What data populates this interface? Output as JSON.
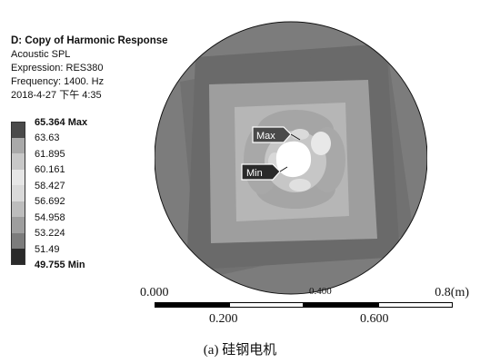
{
  "info": {
    "title": "D: Copy of Harmonic Response",
    "type": "Acoustic SPL",
    "expression": "Expression: RES380",
    "frequency": "Frequency: 1400. Hz",
    "datetime": "2018-4-27 下午 4:35"
  },
  "legend": {
    "max_label": "65.364 Max",
    "values": [
      "63.63",
      "61.895",
      "60.161",
      "58.427",
      "56.692",
      "54.958",
      "53.224",
      "51.49"
    ],
    "min_label": "49.755 Min",
    "colors": [
      "#4a4a4a",
      "#a9a9a9",
      "#c8c8c8",
      "#e6e6e6",
      "#d9d9d9",
      "#bdbdbd",
      "#9e9e9e",
      "#7c7c7c",
      "#2a2a2a"
    ]
  },
  "probes": {
    "max": "Max",
    "min": "Min"
  },
  "scale": {
    "start": "0.000",
    "mid_top": "0.400",
    "end": "0.8(m)",
    "tick1": "0.200",
    "tick2": "0.600"
  },
  "caption": "(a) 硅钢电机"
}
